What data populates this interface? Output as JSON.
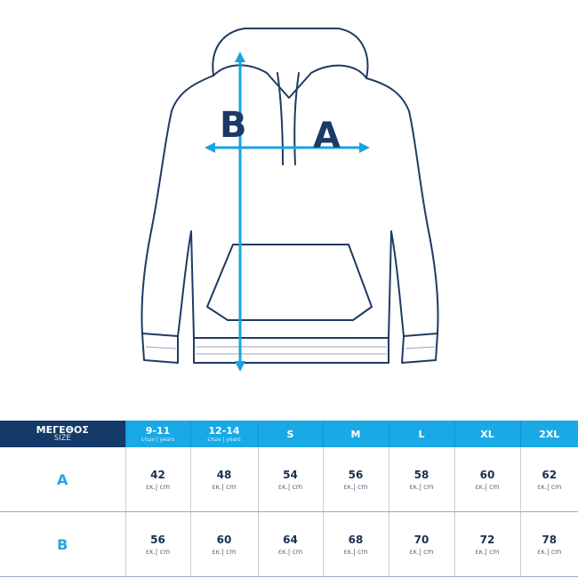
{
  "diagram": {
    "label_a": "A",
    "label_b": "B"
  },
  "colors": {
    "navy": "#133a68",
    "accent": "#19a9e6",
    "arrow": "#1aa3e0"
  },
  "table": {
    "header": {
      "label": "ΜΕΓΕΘΟΣ",
      "sublabel": "SIZE"
    },
    "columns": [
      {
        "label": "9-11",
        "sub": "ετων | years"
      },
      {
        "label": "12-14",
        "sub": "ετων | years"
      },
      {
        "label": "S",
        "sub": ""
      },
      {
        "label": "M",
        "sub": ""
      },
      {
        "label": "L",
        "sub": ""
      },
      {
        "label": "XL",
        "sub": ""
      },
      {
        "label": "2XL",
        "sub": ""
      }
    ],
    "unit": "εκ.| cm",
    "rows": [
      {
        "label": "A",
        "values": [
          "42",
          "48",
          "54",
          "56",
          "58",
          "60",
          "62"
        ]
      },
      {
        "label": "B",
        "values": [
          "56",
          "60",
          "64",
          "68",
          "70",
          "72",
          "78"
        ]
      }
    ]
  }
}
